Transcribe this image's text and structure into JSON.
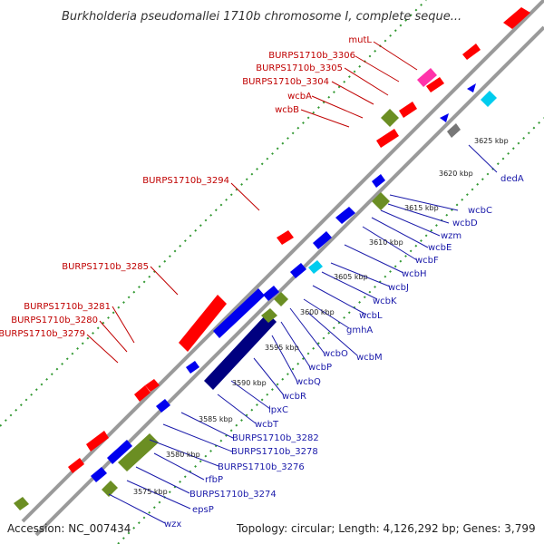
{
  "title": "Burkholderia pseudomallei 1710b chromosome I, complete seque...",
  "footer": {
    "accession": "Accession: NC_007434",
    "topology": "Topology: circular; Length: 4,126,292 bp; Genes: 3,799"
  },
  "ticks": [
    "3625 kbp",
    "3620 kbp",
    "3615 kbp",
    "3610 kbp",
    "3605 kbp",
    "3600 kbp",
    "3595 kbp",
    "3590 kbp",
    "3585 kbp",
    "3580 kbp",
    "3575 kbp"
  ],
  "red_labels": [
    "mutL",
    "BURPS1710b_3306",
    "BURPS1710b_3305",
    "BURPS1710b_3304",
    "wcbA",
    "wcbB",
    "BURPS1710b_3294",
    "BURPS1710b_3285",
    "BURPS1710b_3281",
    "BURPS1710b_3280",
    "BURPS1710b_3279"
  ],
  "blue_labels": [
    "dedA",
    "wcbC",
    "wcbD",
    "wzm",
    "wcbE",
    "wcbF",
    "wcbH",
    "wcbJ",
    "wcbK",
    "wcbL",
    "gmhA",
    "wcbM",
    "wcbO",
    "wcbP",
    "wcbQ",
    "wcbR",
    "lpxC",
    "wcbT",
    "BURPS1710b_3282",
    "BURPS1710b_3278",
    "BURPS1710b_3276",
    "rfbP",
    "BURPS1710b_3274",
    "epsP",
    "wzx"
  ],
  "colors": {
    "forward_gene": "#ff0000",
    "reverse_gene": "#0000ee",
    "rna_gene": "#6b8e23",
    "highlight_gene": "#000080",
    "backbone": "#999999",
    "gc_dots": "#339933",
    "red_label": "#c00000",
    "blue_label": "#1a1aaa"
  }
}
